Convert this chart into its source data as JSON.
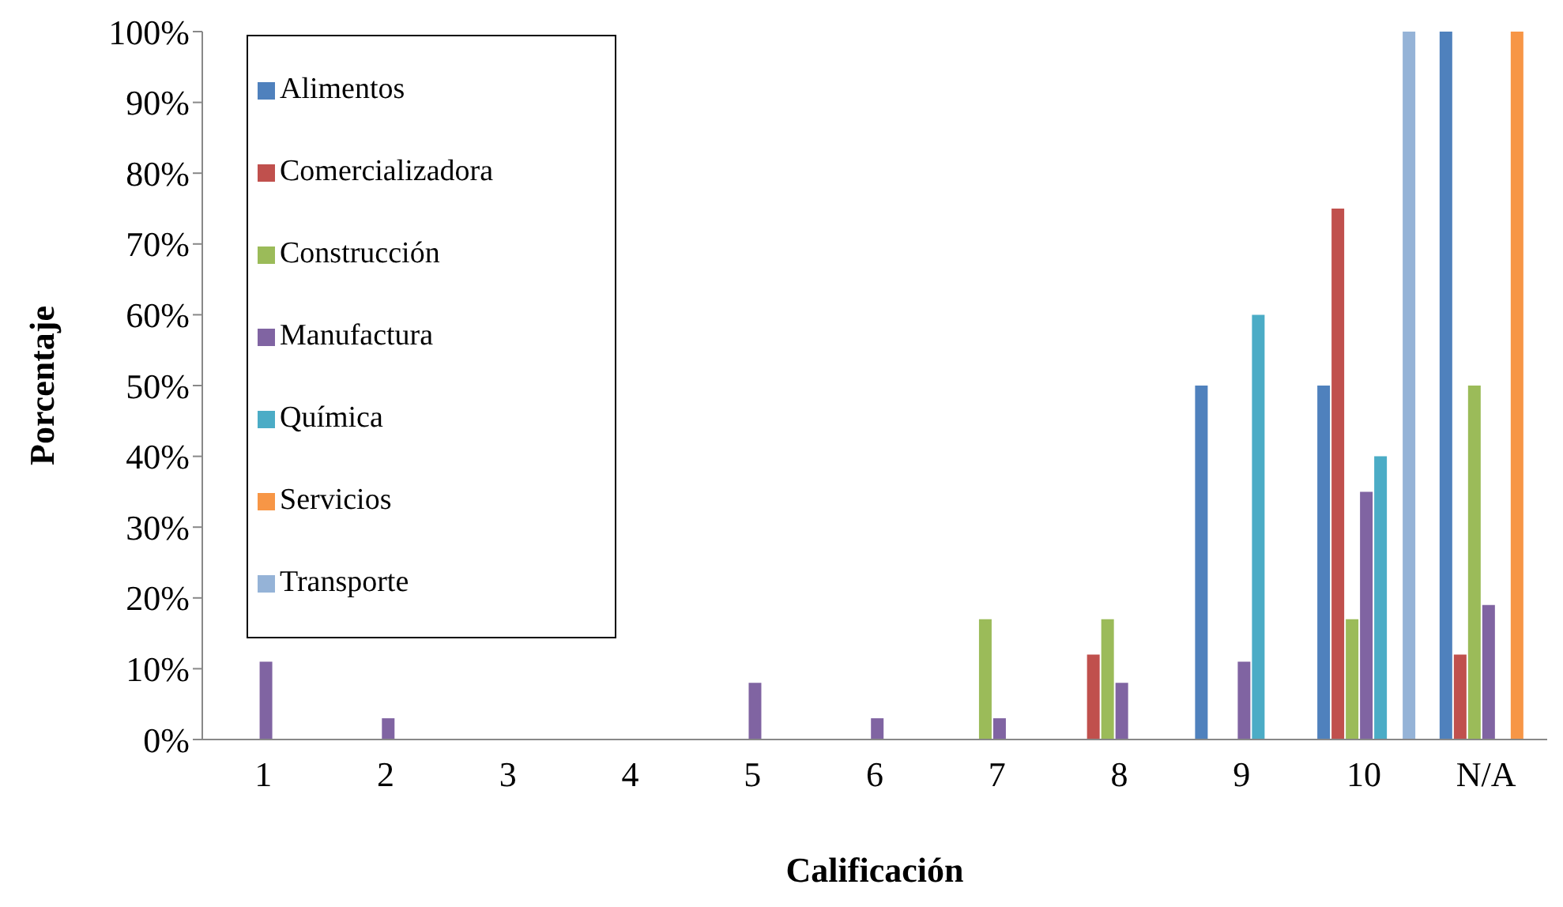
{
  "chart_data": {
    "type": "bar",
    "xlabel": "Calificación",
    "ylabel": "Porcentaje",
    "categories": [
      "1",
      "2",
      "3",
      "4",
      "5",
      "6",
      "7",
      "8",
      "9",
      "10",
      "N/A"
    ],
    "series": [
      {
        "name": "Alimentos",
        "color": "#4f81bd",
        "values": [
          0,
          0,
          0,
          0,
          0,
          0,
          0,
          0,
          50,
          50,
          100
        ]
      },
      {
        "name": "Comercializadora",
        "color": "#c0504d",
        "values": [
          0,
          0,
          0,
          0,
          0,
          0,
          0,
          12,
          0,
          75,
          12
        ]
      },
      {
        "name": "Construcción",
        "color": "#9bbb59",
        "values": [
          0,
          0,
          0,
          0,
          0,
          0,
          17,
          17,
          0,
          17,
          50
        ]
      },
      {
        "name": "Manufactura",
        "color": "#8064a2",
        "values": [
          11,
          3,
          0,
          0,
          8,
          3,
          3,
          8,
          11,
          35,
          19
        ]
      },
      {
        "name": "Química",
        "color": "#4bacc6",
        "values": [
          0,
          0,
          0,
          0,
          0,
          0,
          0,
          0,
          60,
          40,
          0
        ]
      },
      {
        "name": "Servicios",
        "color": "#f79646",
        "values": [
          0,
          0,
          0,
          0,
          0,
          0,
          0,
          0,
          0,
          0,
          100
        ]
      },
      {
        "name": "Transporte",
        "color": "#95b3d7",
        "values": [
          0,
          0,
          0,
          0,
          0,
          0,
          0,
          0,
          0,
          100,
          0
        ]
      }
    ],
    "ylim": [
      0,
      100
    ],
    "yticks": [
      {
        "value": 0,
        "label": "0%"
      },
      {
        "value": 10,
        "label": "10%"
      },
      {
        "value": 20,
        "label": "20%"
      },
      {
        "value": 30,
        "label": "30%"
      },
      {
        "value": 40,
        "label": "40%"
      },
      {
        "value": 50,
        "label": "50%"
      },
      {
        "value": 60,
        "label": "60%"
      },
      {
        "value": 70,
        "label": "70%"
      },
      {
        "value": 80,
        "label": "80%"
      },
      {
        "value": 90,
        "label": "90%"
      },
      {
        "value": 100,
        "label": "100%"
      }
    ],
    "grid": false,
    "legend": "top left"
  }
}
